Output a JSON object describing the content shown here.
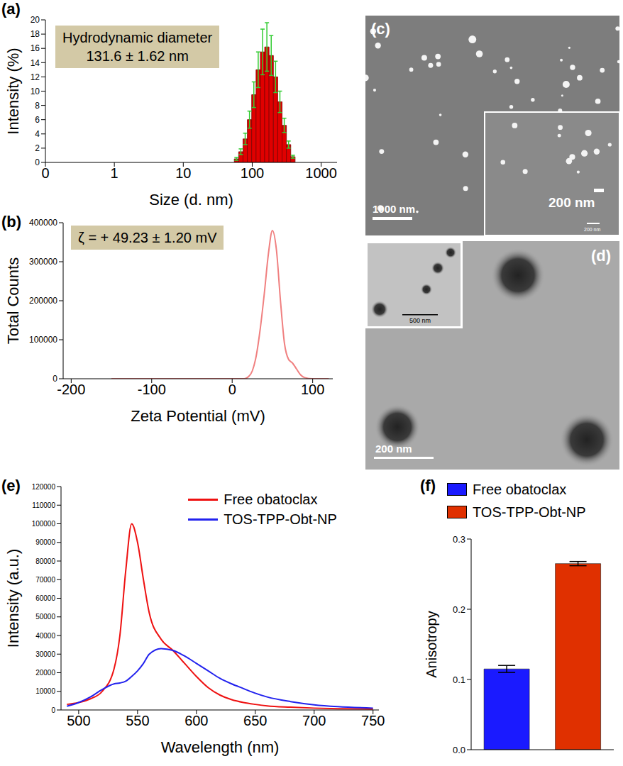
{
  "chart_data": [
    {
      "panel": "(a)",
      "type": "histogram",
      "x_label": "Size (d. nm)",
      "y_label": "Intensity (%)",
      "annotation": [
        "Hydrodynamic diameter",
        "131.6 ± 1.62 nm"
      ],
      "bins": [
        55,
        63.6,
        73.5,
        85.0,
        98.2,
        113.6,
        131.3,
        151.8,
        175.4,
        202.8,
        234.5,
        271.0,
        313.3,
        362.2,
        418.7
      ],
      "values": [
        0.5,
        1.5,
        3.3,
        6,
        9.5,
        13,
        15.5,
        16.2,
        15,
        12,
        8.5,
        5.2,
        2.5,
        0.8
      ],
      "errors": [
        0.2,
        0.4,
        0.8,
        1.2,
        1.8,
        2.5,
        3.2,
        3.4,
        2.8,
        2.2,
        1.5,
        1,
        0.5,
        0.2
      ],
      "color": "#e00000",
      "log": "x",
      "xlim": [
        0.1,
        1700
      ],
      "xticks": [
        {
          "value": 0.1,
          "label": "0"
        },
        1,
        10,
        100,
        1000
      ],
      "ylim": [
        0,
        20
      ],
      "yticks": [
        0,
        2,
        4,
        6,
        8,
        10,
        12,
        14,
        16,
        18,
        20
      ]
    },
    {
      "panel": "(b)",
      "type": "line",
      "x_label": "Zeta Potential (mV)",
      "y_label": "Total Counts",
      "annotation": [
        "ζ = + 49.23 ± 1.20 mV"
      ],
      "x": [
        -150,
        0,
        15,
        20,
        25,
        30,
        35,
        40,
        45,
        50,
        55,
        60,
        65,
        70,
        75,
        80,
        85,
        90,
        100,
        120
      ],
      "values": [
        0,
        0,
        0,
        5000,
        20000,
        60000,
        130000,
        220000,
        320000,
        380000,
        330000,
        200000,
        90000,
        50000,
        40000,
        25000,
        10000,
        3000,
        0,
        0
      ],
      "color": "#f08080",
      "xlim": [
        -210,
        125
      ],
      "xticks": [
        -200,
        -100,
        0,
        100
      ],
      "ylim": [
        0,
        400000
      ],
      "yticks": [
        0,
        100000,
        200000,
        300000,
        400000
      ]
    },
    {
      "panel": "(e)",
      "type": "line",
      "x_label": "Wavelength (nm)",
      "y_label": "Intensity (a.u.)",
      "x": [
        490,
        500,
        510,
        520,
        530,
        535,
        540,
        545,
        550,
        555,
        560,
        570,
        580,
        590,
        600,
        610,
        620,
        630,
        640,
        650,
        660,
        680,
        700,
        720,
        750
      ],
      "series": [
        {
          "name": "Free obatoclax",
          "color": "#ee1111",
          "values": [
            3000,
            4000,
            6000,
            10000,
            22000,
            40000,
            75000,
            100000,
            90000,
            70000,
            52000,
            38000,
            32000,
            25000,
            18000,
            12000,
            8000,
            5500,
            4000,
            3000,
            2200,
            1500,
            1000,
            700,
            500
          ]
        },
        {
          "name": "TOS-TPP-Obt-NP",
          "color": "#2222ee",
          "values": [
            2000,
            4000,
            7000,
            11000,
            14000,
            14500,
            15500,
            18000,
            21000,
            25000,
            30000,
            33000,
            32000,
            29000,
            25000,
            21000,
            17000,
            14000,
            11500,
            9000,
            7000,
            4500,
            2800,
            1800,
            1000
          ]
        }
      ],
      "legend": "top right",
      "xlim": [
        485,
        755
      ],
      "xticks": [
        500,
        550,
        600,
        650,
        700,
        750
      ],
      "ylim": [
        0,
        120000
      ],
      "yticks": [
        0,
        10000,
        20000,
        30000,
        40000,
        50000,
        60000,
        70000,
        80000,
        90000,
        100000,
        110000,
        120000
      ]
    },
    {
      "panel": "(f)",
      "type": "bar",
      "y_label": "Anisotropy",
      "categories": [
        "Free obatoclax",
        "TOS-TPP-Obt-NP"
      ],
      "values": [
        0.115,
        0.265
      ],
      "errors": [
        0.005,
        0.003
      ],
      "colors": [
        "#1a1aff",
        "#e03000"
      ],
      "legend": "top",
      "tick_labels": "y",
      "ylim": [
        0,
        0.3
      ],
      "yticks": [
        {
          "value": 0,
          "label": "0.0"
        },
        0.1,
        0.2,
        0.3
      ]
    }
  ],
  "images": [
    {
      "panel": "(c)",
      "scale_bar": "1000 nm",
      "inset_scale_bar": "200 nm",
      "inset_small_label": "200 nm"
    },
    {
      "panel": "(d)",
      "scale_bar": "200 nm",
      "inset_scale_bar": "500 nm"
    }
  ]
}
